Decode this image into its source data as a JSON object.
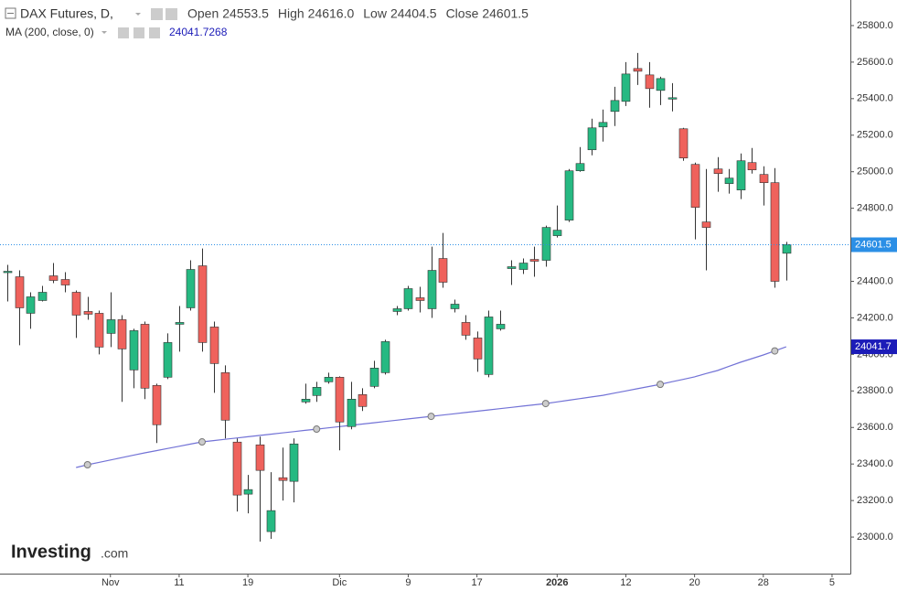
{
  "chart_data": {
    "type": "candlestick",
    "title": "DAX Futures, D,",
    "ohlc_legend": [
      {
        "label": "Open",
        "value": 24553.5
      },
      {
        "label": "High",
        "value": 24616,
        "value_label": "24616.0"
      },
      {
        "label": "Low",
        "value": 24404.5
      },
      {
        "label": "Close",
        "value": 24601.5
      }
    ],
    "open": [
      24450,
      24425,
      24225,
      24295,
      24430,
      24410,
      24340,
      24235,
      24225,
      24115,
      24190,
      23915,
      24165,
      23830,
      23875,
      24165,
      24255,
      24485,
      24150,
      23900,
      23520,
      23235,
      23505,
      23030,
      23325,
      23305,
      23740,
      23775,
      23850,
      23875,
      23605,
      23780,
      23825,
      23900,
      24235,
      24250,
      24310,
      24250,
      24525,
      24250,
      24175,
      24090,
      23890,
      24140,
      24470,
      24465,
      24520,
      24515,
      24650,
      24735,
      25005,
      25120,
      25245,
      25330,
      25385,
      25565,
      25530,
      25445,
      25400,
      25235,
      25040,
      24725,
      25015,
      24935,
      24900,
      25050,
      24985,
      24940,
      24553.5
    ],
    "high": [
      24490,
      24460,
      24340,
      24375,
      24500,
      24450,
      24350,
      24315,
      24240,
      24340,
      24215,
      24140,
      24180,
      23840,
      24115,
      24265,
      24515,
      24580,
      24180,
      23940,
      23540,
      23340,
      23550,
      23355,
      23490,
      23540,
      23840,
      23850,
      23900,
      23880,
      23850,
      23815,
      23965,
      24080,
      24265,
      24375,
      24370,
      24590,
      24665,
      24300,
      24215,
      24125,
      24240,
      24240,
      24515,
      24525,
      24590,
      24705,
      24815,
      25015,
      25135,
      25290,
      25340,
      25465,
      25600,
      25650,
      25600,
      25520,
      25485,
      25240,
      25050,
      25015,
      25080,
      25015,
      25100,
      25130,
      25030,
      25020,
      24616
    ],
    "low": [
      24290,
      24050,
      24140,
      24290,
      24390,
      24340,
      24090,
      24190,
      24000,
      24040,
      23740,
      23815,
      23755,
      23515,
      23865,
      24015,
      24240,
      24015,
      23790,
      23540,
      23140,
      23130,
      22975,
      22990,
      23200,
      23190,
      23730,
      23740,
      23840,
      23475,
      23590,
      23690,
      23815,
      23890,
      24215,
      24240,
      24230,
      24200,
      24365,
      24230,
      24080,
      23905,
      23875,
      24130,
      24380,
      24440,
      24425,
      24480,
      24640,
      24725,
      25000,
      25090,
      25165,
      25250,
      25360,
      25475,
      25350,
      25365,
      25330,
      25060,
      24630,
      24460,
      24890,
      24880,
      24850,
      24990,
      24815,
      24365,
      24404.5
    ],
    "close": [
      24455,
      24255,
      24315,
      24340,
      24405,
      24380,
      24215,
      24220,
      24040,
      24190,
      24030,
      24130,
      23815,
      23615,
      24065,
      24175,
      24465,
      24065,
      23950,
      23640,
      23230,
      23260,
      23365,
      23145,
      23310,
      23510,
      23755,
      23820,
      23875,
      23630,
      23755,
      23715,
      23925,
      24070,
      24250,
      24360,
      24295,
      24460,
      24395,
      24275,
      24105,
      23975,
      24205,
      24165,
      24480,
      24500,
      24510,
      24695,
      24680,
      25005,
      25045,
      25240,
      25270,
      25390,
      25535,
      25550,
      25455,
      25510,
      25405,
      25075,
      24805,
      24695,
      24990,
      24965,
      25060,
      25010,
      24940,
      24400,
      24601.5
    ],
    "up_color": "#26b982",
    "down_color": "#ef625c",
    "last_price_color": "#2b8fe6",
    "indicator": {
      "name": "MA (200, close, 0)",
      "color": "#7272d6",
      "values": [
        null,
        null,
        null,
        null,
        null,
        null,
        23381,
        23396,
        23409,
        23422,
        23435,
        23448,
        23461,
        23473,
        23485,
        23497,
        23509,
        23521,
        23528,
        23535,
        23542,
        23549,
        23556,
        23563,
        23570,
        23577,
        23584,
        23591,
        23598,
        23605,
        23612,
        23619,
        23626,
        23633,
        23640,
        23647,
        23654,
        23661,
        23668,
        23675,
        23682,
        23689,
        23696,
        23703,
        23710,
        23717,
        23724,
        23731,
        23740,
        23749,
        23758,
        23767,
        23776,
        23788,
        23800,
        23812,
        23824,
        23836,
        23850,
        23863,
        23877,
        23895,
        23912,
        23935,
        23957,
        23977,
        23997,
        24019,
        24041.7268
      ],
      "badge_label": "24041.7",
      "badge_color": "#1c1cb8"
    },
    "ylim": [
      22800,
      25940
    ],
    "yticks": [
      {
        "value": 23000,
        "label": "23000.0"
      },
      {
        "value": 23200,
        "label": "23200.0"
      },
      {
        "value": 23400,
        "label": "23400.0"
      },
      {
        "value": 23600,
        "label": "23600.0"
      },
      {
        "value": 23800,
        "label": "23800.0"
      },
      {
        "value": 24000,
        "label": "24000.0"
      },
      {
        "value": 24200,
        "label": "24200.0"
      },
      {
        "value": 24400,
        "label": "24400.0"
      },
      {
        "value": 24600,
        "label": "24600.0"
      },
      {
        "value": 24800,
        "label": "24800.0"
      },
      {
        "value": 25000,
        "label": "25000.0"
      },
      {
        "value": 25200,
        "label": "25200.0"
      },
      {
        "value": 25400,
        "label": "25400.0"
      },
      {
        "value": 25600,
        "label": "25600.0"
      },
      {
        "value": 25800,
        "label": "25800.0"
      }
    ],
    "xlim": [
      -0.64,
      73.6
    ],
    "xticks": [
      {
        "value": 9,
        "label": "Nov"
      },
      {
        "value": 15,
        "label": "11"
      },
      {
        "value": 21,
        "label": "19"
      },
      {
        "value": 29,
        "label": "Dic"
      },
      {
        "value": 35,
        "label": "9"
      },
      {
        "value": 41,
        "label": "17"
      },
      {
        "value": 48,
        "label": "2026"
      },
      {
        "value": 54,
        "label": "12"
      },
      {
        "value": 60,
        "label": "20"
      },
      {
        "value": 66,
        "label": "28"
      },
      {
        "value": 72,
        "label": "5"
      }
    ],
    "watermark": {
      "brand": "Investing",
      "suffix": ".com"
    }
  }
}
